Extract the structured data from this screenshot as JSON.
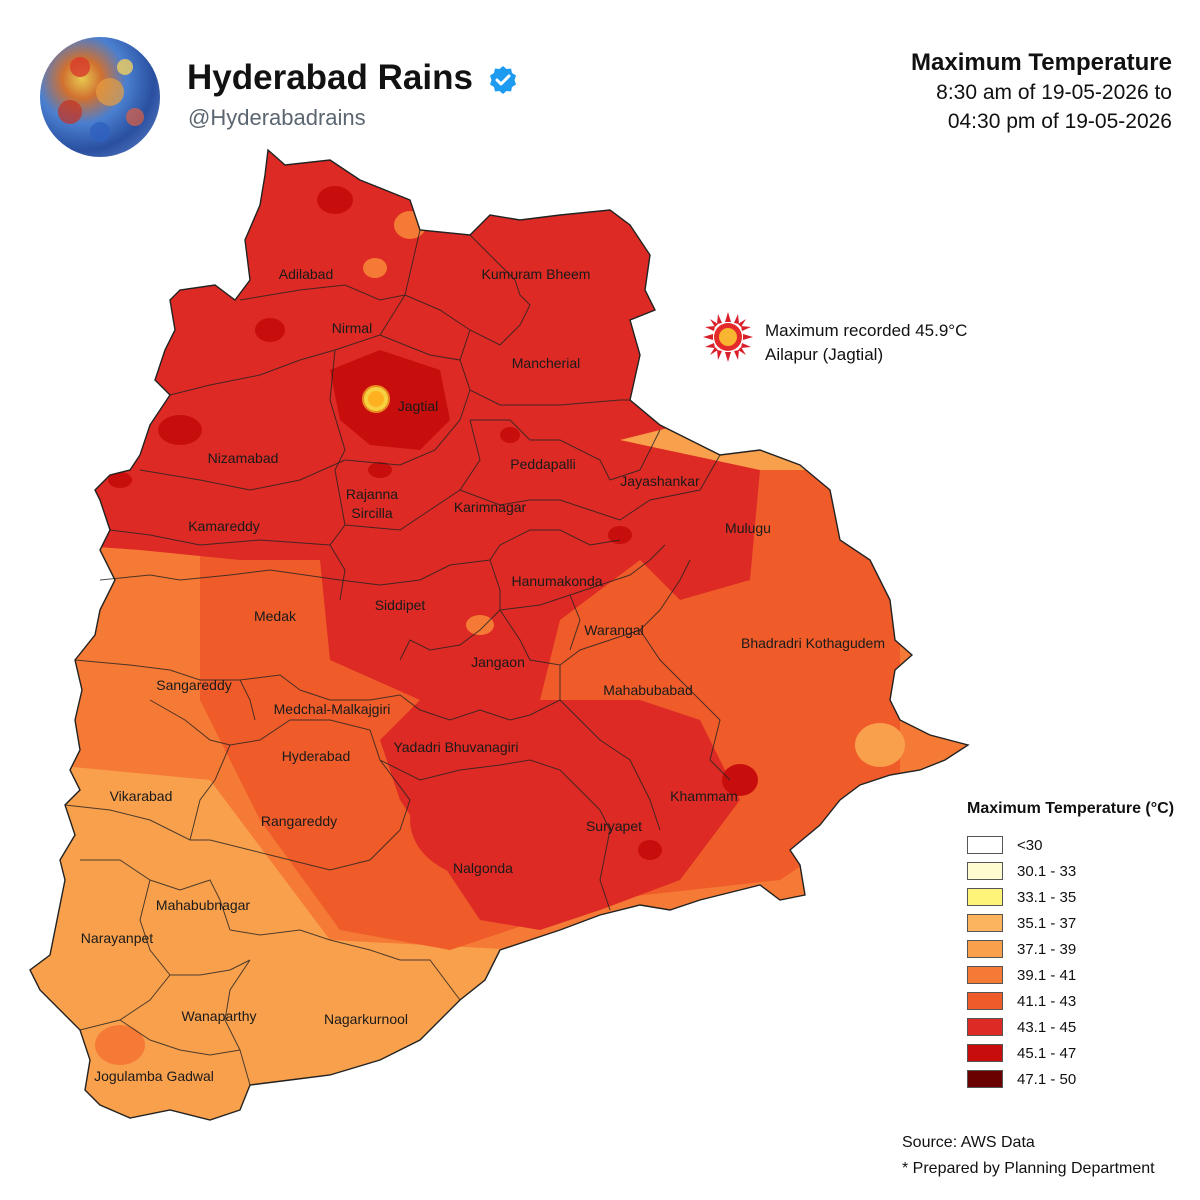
{
  "account": {
    "name": "Hyderabad Rains",
    "handle": "@Hyderabadrains"
  },
  "map": {
    "title": "Maximum Temperature",
    "subtitle_line1": "8:30 am of 19-05-2026 to",
    "subtitle_line2": "04:30 pm of 19-05-2026",
    "callout_line1": "Maximum recorded 45.9°C",
    "callout_line2": "Ailapur (Jagtial)",
    "districts": [
      "Adilabad",
      "Kumuram Bheem",
      "Nirmal",
      "Mancherial",
      "Jagtial",
      "Nizamabad",
      "Peddapalli",
      "Rajanna",
      "Sircilla",
      "Karimnagar",
      "Jayashankar",
      "Kamareddy",
      "Mulugu",
      "Hanumakonda",
      "Medak",
      "Siddipet",
      "Warangal",
      "Bhadradri Kothagudem",
      "Jangaon",
      "Sangareddy",
      "Mahabubabad",
      "Medchal-Malkajgiri",
      "Yadadri Bhuvanagiri",
      "Hyderabad",
      "Vikarabad",
      "Khammam",
      "Rangareddy",
      "Suryapet",
      "Nalgonda",
      "Mahabubnagar",
      "Narayanpet",
      "Wanaparthy",
      "Nagarkurnool",
      "Jogulamba Gadwal"
    ]
  },
  "legend": {
    "title": "Maximum Temperature (°C)",
    "items": [
      {
        "label": "<30",
        "color": "#ffffff"
      },
      {
        "label": "30.1 - 33",
        "color": "#fffbd0"
      },
      {
        "label": "33.1 - 35",
        "color": "#fff47a"
      },
      {
        "label": "35.1 - 37",
        "color": "#fdb45e"
      },
      {
        "label": "37.1 - 39",
        "color": "#f9a04c"
      },
      {
        "label": "39.1 - 41",
        "color": "#f57a35"
      },
      {
        "label": "41.1 - 43",
        "color": "#ef5c2a"
      },
      {
        "label": "43.1 - 45",
        "color": "#dd2a24"
      },
      {
        "label": "45.1 - 47",
        "color": "#c80d0d"
      },
      {
        "label": "47.1 - 50",
        "color": "#6b0000"
      }
    ]
  },
  "source": "Source: AWS Data",
  "note": "* Prepared by Planning Department"
}
